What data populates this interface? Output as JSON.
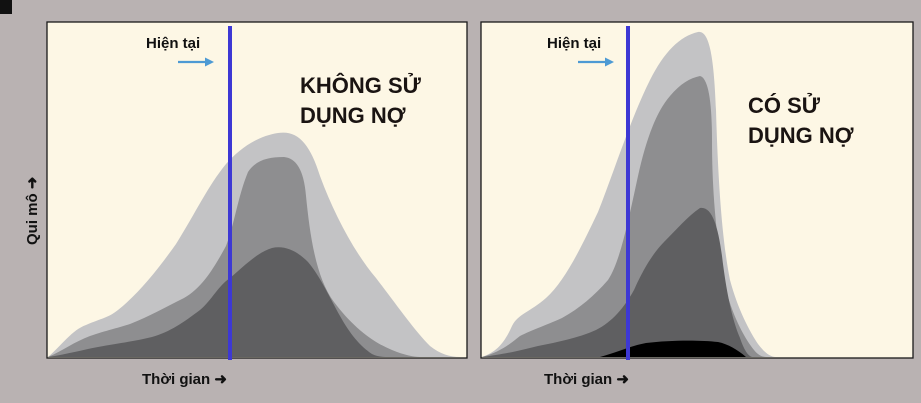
{
  "colors": {
    "background": "#b9b2b2",
    "panel": "#fdf7e5",
    "present_line": "#3d38d4",
    "present_arrow": "#4d9ad4",
    "layers": [
      "#c3c3c5",
      "#8e8e90",
      "#5f5f61",
      "#000000"
    ]
  },
  "y_axis": {
    "label": "Qui mô",
    "arrow": "➜"
  },
  "panels": [
    {
      "present_label": "Hiện tại",
      "title_lines": [
        "KHÔNG SỬ",
        "DỤNG NỢ"
      ],
      "x_axis_label": "Thời gian ➜"
    },
    {
      "present_label": "Hiện tại",
      "title_lines": [
        "CÓ SỬ",
        "DỤNG NỢ"
      ],
      "x_axis_label": "Thời gian ➜"
    }
  ]
}
